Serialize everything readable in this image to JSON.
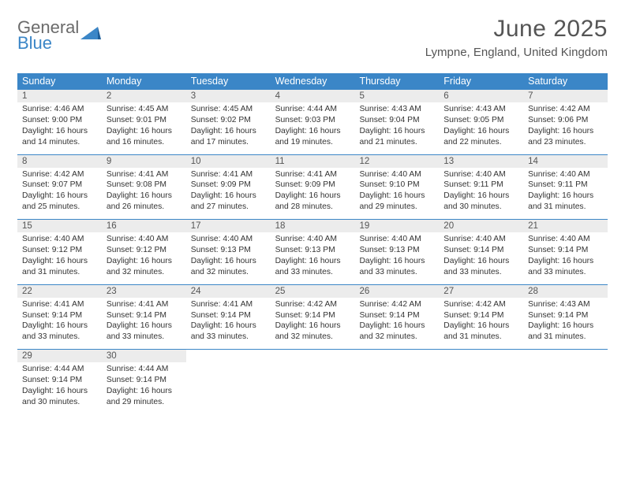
{
  "brand": {
    "top": "General",
    "bottom": "Blue"
  },
  "title": "June 2025",
  "subtitle": "Lympne, England, United Kingdom",
  "colors": {
    "header_bg": "#3b86c7",
    "daynum_bg": "#ececec",
    "rule": "#3b86c7",
    "text": "#333333",
    "muted": "#555555"
  },
  "fonts": {
    "body_pt": 10.3,
    "header_pt": 12.5,
    "title_pt": 30,
    "subtitle_pt": 15
  },
  "day_labels": [
    "Sunday",
    "Monday",
    "Tuesday",
    "Wednesday",
    "Thursday",
    "Friday",
    "Saturday"
  ],
  "weeks": [
    [
      {
        "n": "1",
        "sr": "4:46 AM",
        "ss": "9:00 PM",
        "dl": "16 hours and 14 minutes."
      },
      {
        "n": "2",
        "sr": "4:45 AM",
        "ss": "9:01 PM",
        "dl": "16 hours and 16 minutes."
      },
      {
        "n": "3",
        "sr": "4:45 AM",
        "ss": "9:02 PM",
        "dl": "16 hours and 17 minutes."
      },
      {
        "n": "4",
        "sr": "4:44 AM",
        "ss": "9:03 PM",
        "dl": "16 hours and 19 minutes."
      },
      {
        "n": "5",
        "sr": "4:43 AM",
        "ss": "9:04 PM",
        "dl": "16 hours and 21 minutes."
      },
      {
        "n": "6",
        "sr": "4:43 AM",
        "ss": "9:05 PM",
        "dl": "16 hours and 22 minutes."
      },
      {
        "n": "7",
        "sr": "4:42 AM",
        "ss": "9:06 PM",
        "dl": "16 hours and 23 minutes."
      }
    ],
    [
      {
        "n": "8",
        "sr": "4:42 AM",
        "ss": "9:07 PM",
        "dl": "16 hours and 25 minutes."
      },
      {
        "n": "9",
        "sr": "4:41 AM",
        "ss": "9:08 PM",
        "dl": "16 hours and 26 minutes."
      },
      {
        "n": "10",
        "sr": "4:41 AM",
        "ss": "9:09 PM",
        "dl": "16 hours and 27 minutes."
      },
      {
        "n": "11",
        "sr": "4:41 AM",
        "ss": "9:09 PM",
        "dl": "16 hours and 28 minutes."
      },
      {
        "n": "12",
        "sr": "4:40 AM",
        "ss": "9:10 PM",
        "dl": "16 hours and 29 minutes."
      },
      {
        "n": "13",
        "sr": "4:40 AM",
        "ss": "9:11 PM",
        "dl": "16 hours and 30 minutes."
      },
      {
        "n": "14",
        "sr": "4:40 AM",
        "ss": "9:11 PM",
        "dl": "16 hours and 31 minutes."
      }
    ],
    [
      {
        "n": "15",
        "sr": "4:40 AM",
        "ss": "9:12 PM",
        "dl": "16 hours and 31 minutes."
      },
      {
        "n": "16",
        "sr": "4:40 AM",
        "ss": "9:12 PM",
        "dl": "16 hours and 32 minutes."
      },
      {
        "n": "17",
        "sr": "4:40 AM",
        "ss": "9:13 PM",
        "dl": "16 hours and 32 minutes."
      },
      {
        "n": "18",
        "sr": "4:40 AM",
        "ss": "9:13 PM",
        "dl": "16 hours and 33 minutes."
      },
      {
        "n": "19",
        "sr": "4:40 AM",
        "ss": "9:13 PM",
        "dl": "16 hours and 33 minutes."
      },
      {
        "n": "20",
        "sr": "4:40 AM",
        "ss": "9:14 PM",
        "dl": "16 hours and 33 minutes."
      },
      {
        "n": "21",
        "sr": "4:40 AM",
        "ss": "9:14 PM",
        "dl": "16 hours and 33 minutes."
      }
    ],
    [
      {
        "n": "22",
        "sr": "4:41 AM",
        "ss": "9:14 PM",
        "dl": "16 hours and 33 minutes."
      },
      {
        "n": "23",
        "sr": "4:41 AM",
        "ss": "9:14 PM",
        "dl": "16 hours and 33 minutes."
      },
      {
        "n": "24",
        "sr": "4:41 AM",
        "ss": "9:14 PM",
        "dl": "16 hours and 33 minutes."
      },
      {
        "n": "25",
        "sr": "4:42 AM",
        "ss": "9:14 PM",
        "dl": "16 hours and 32 minutes."
      },
      {
        "n": "26",
        "sr": "4:42 AM",
        "ss": "9:14 PM",
        "dl": "16 hours and 32 minutes."
      },
      {
        "n": "27",
        "sr": "4:42 AM",
        "ss": "9:14 PM",
        "dl": "16 hours and 31 minutes."
      },
      {
        "n": "28",
        "sr": "4:43 AM",
        "ss": "9:14 PM",
        "dl": "16 hours and 31 minutes."
      }
    ],
    [
      {
        "n": "29",
        "sr": "4:44 AM",
        "ss": "9:14 PM",
        "dl": "16 hours and 30 minutes."
      },
      {
        "n": "30",
        "sr": "4:44 AM",
        "ss": "9:14 PM",
        "dl": "16 hours and 29 minutes."
      },
      null,
      null,
      null,
      null,
      null
    ]
  ],
  "labels": {
    "sunrise": "Sunrise: ",
    "sunset": "Sunset: ",
    "daylight": "Daylight: "
  }
}
